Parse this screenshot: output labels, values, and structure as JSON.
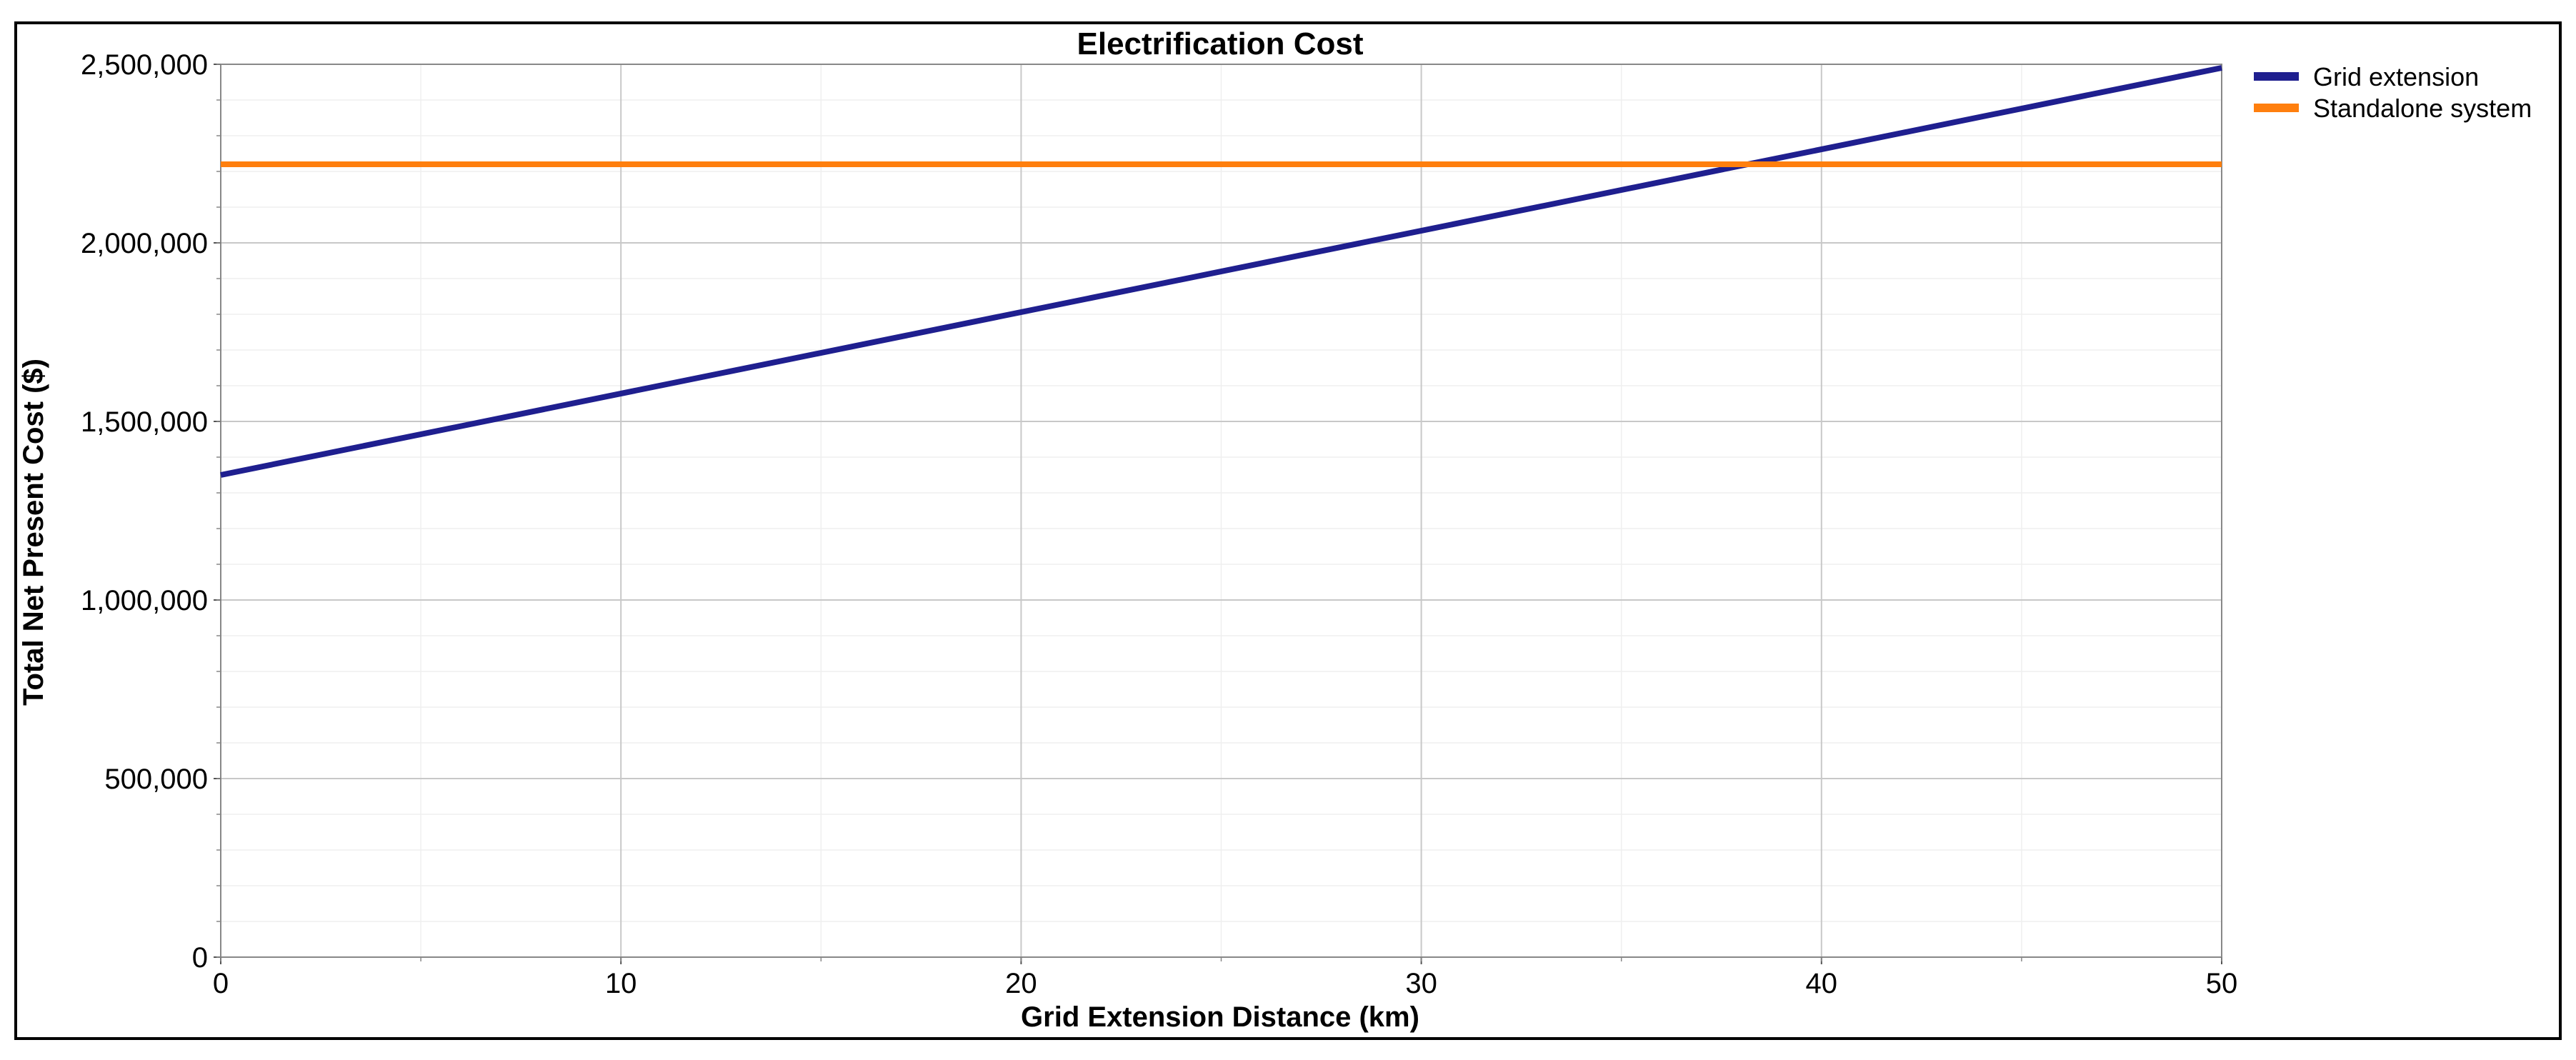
{
  "chart_data": {
    "type": "line",
    "title": "Electrification Cost",
    "xlabel": "Grid Extension Distance (km)",
    "ylabel": "Total Net Present Cost ($)",
    "xlim": [
      0,
      50
    ],
    "ylim": [
      0,
      2500000
    ],
    "x_ticks": [
      0,
      10,
      20,
      30,
      40,
      50
    ],
    "x_tick_labels": [
      "0",
      "10",
      "20",
      "30",
      "40",
      "50"
    ],
    "y_ticks": [
      0,
      500000,
      1000000,
      1500000,
      2000000,
      2500000
    ],
    "y_tick_labels": [
      "0",
      "500,000",
      "1,000,000",
      "1,500,000",
      "2,000,000",
      "2,500,000"
    ],
    "grid": true,
    "legend_position": "right",
    "series": [
      {
        "name": "Grid extension",
        "color": "#1f1f8f",
        "x": [
          0,
          50
        ],
        "y": [
          1350000,
          2490000
        ]
      },
      {
        "name": "Standalone system",
        "color": "#ff7f0e",
        "x": [
          0,
          50
        ],
        "y": [
          2220000,
          2220000
        ]
      }
    ]
  }
}
